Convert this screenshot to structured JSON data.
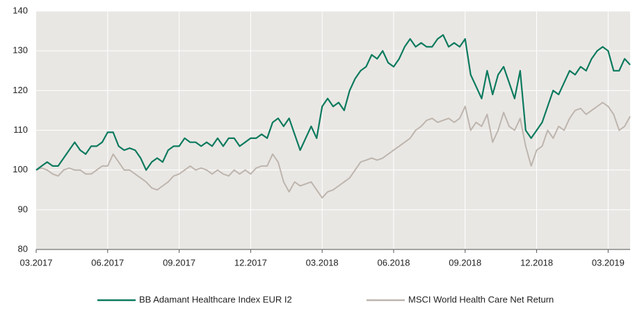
{
  "chart_data": {
    "type": "line",
    "categories": [
      "03.2017",
      null,
      null,
      null,
      null,
      null,
      null,
      null,
      null,
      null,
      null,
      null,
      null,
      "06.2017",
      null,
      null,
      null,
      null,
      null,
      null,
      null,
      null,
      null,
      null,
      null,
      null,
      "09.2017",
      null,
      null,
      null,
      null,
      null,
      null,
      null,
      null,
      null,
      null,
      null,
      null,
      "12.2017",
      null,
      null,
      null,
      null,
      null,
      null,
      null,
      null,
      null,
      null,
      null,
      null,
      "03.2018",
      null,
      null,
      null,
      null,
      null,
      null,
      null,
      null,
      null,
      null,
      null,
      null,
      "06.2018",
      null,
      null,
      null,
      null,
      null,
      null,
      null,
      null,
      null,
      null,
      null,
      null,
      "09.2018",
      null,
      null,
      null,
      null,
      null,
      null,
      null,
      null,
      null,
      null,
      null,
      null,
      "12.2018",
      null,
      null,
      null,
      null,
      null,
      null,
      null,
      null,
      null,
      null,
      null,
      null,
      "03.2019",
      null,
      null,
      null,
      null
    ],
    "series": [
      {
        "name": "BB Adamant Healthcare Index EUR I2",
        "color": "#0b7a5e",
        "values": [
          100,
          101,
          102,
          101,
          101,
          103,
          105,
          107,
          105,
          104,
          106,
          106,
          107,
          109.5,
          109.5,
          106,
          105,
          105.5,
          105,
          103,
          100,
          102,
          103,
          102,
          105,
          106,
          106,
          108,
          107,
          107,
          106,
          107,
          106,
          108,
          106,
          108,
          108,
          106,
          107,
          108,
          108,
          109,
          108,
          112,
          113,
          111,
          113,
          109,
          105,
          108,
          111,
          108,
          116,
          118,
          116,
          117,
          115,
          120,
          123,
          125,
          126,
          129,
          128,
          130,
          127,
          126,
          128,
          131,
          133,
          131,
          132,
          131,
          131,
          133,
          134,
          131,
          132,
          131,
          133,
          124,
          121,
          118,
          125,
          119,
          124,
          126,
          122,
          118,
          125,
          110,
          108,
          110,
          112,
          116,
          120,
          119,
          122,
          125,
          124,
          126,
          125,
          128,
          130,
          131,
          130,
          125,
          125,
          128,
          126.5
        ]
      },
      {
        "name": "MSCI World Health Care Net Return",
        "color": "#bdb5ad",
        "values": [
          100,
          100.5,
          100,
          99,
          98.5,
          100,
          100.5,
          100,
          100,
          99,
          99,
          100,
          101,
          101,
          104,
          102,
          100,
          100,
          99,
          98,
          97,
          95.5,
          95,
          96,
          97,
          98.5,
          99,
          100,
          101,
          100,
          100.5,
          100,
          99,
          100,
          99,
          98.5,
          100,
          99,
          100,
          99,
          100.5,
          101,
          101,
          104,
          102,
          97,
          94.5,
          97,
          96,
          96.5,
          97,
          95,
          93,
          94.5,
          95,
          96,
          97,
          98,
          100,
          102,
          102.5,
          103,
          102.5,
          103,
          104,
          105,
          106,
          107,
          108,
          110,
          111,
          112.5,
          113,
          112,
          112.5,
          113,
          112,
          113,
          116,
          110,
          112,
          111,
          114,
          107,
          110,
          114.5,
          111,
          110,
          113,
          106,
          101,
          105,
          106,
          110,
          108,
          111,
          110,
          113,
          115,
          115.5,
          114,
          115,
          116,
          117,
          116,
          114,
          110,
          111,
          113.5
        ]
      }
    ],
    "ylim": [
      80,
      140
    ],
    "yticks": [
      80,
      90,
      100,
      110,
      120,
      130,
      140
    ],
    "grid": true,
    "legend": "bottom"
  }
}
